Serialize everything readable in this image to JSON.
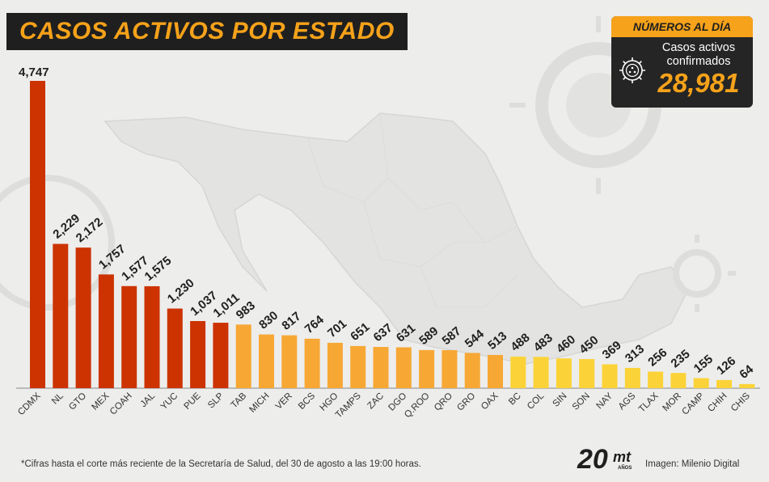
{
  "title": "CASOS ACTIVOS POR ESTADO",
  "stats": {
    "header": "NÚMEROS AL DÍA",
    "label": "Casos activos confirmados",
    "value": "28,981",
    "icon": "virus-icon"
  },
  "footer": {
    "note": "*Cifras hasta el corte más reciente de la Secretaría de Salud, del 30 de agosto a las 19:00 horas.",
    "credit": "Imagen: Milenio Digital",
    "logo_text": "20",
    "logo_sub": "mt",
    "logo_years": "AÑOS"
  },
  "colors": {
    "red": "#cc3300",
    "orange": "#f7a734",
    "yellow": "#fbd338",
    "accent": "#f6a21a",
    "dark": "#1f1f1f"
  },
  "chart_data": {
    "type": "bar",
    "categories": [
      "CDMX",
      "NL",
      "GTO",
      "MEX",
      "COAH",
      "JAL",
      "YUC",
      "PUE",
      "SLP",
      "TAB",
      "MICH",
      "VER",
      "BCS",
      "HGO",
      "TAMPS",
      "ZAC",
      "DGO",
      "Q.ROO",
      "QRO",
      "GRO",
      "OAX",
      "BC",
      "COL",
      "SIN",
      "SON",
      "NAY",
      "AGS",
      "TLAX",
      "MOR",
      "CAMP",
      "CHIH",
      "CHIS"
    ],
    "values": [
      4747,
      2229,
      2172,
      1757,
      1577,
      1575,
      1230,
      1037,
      1011,
      983,
      830,
      817,
      764,
      701,
      651,
      637,
      631,
      589,
      587,
      544,
      513,
      488,
      483,
      460,
      450,
      369,
      313,
      256,
      235,
      155,
      126,
      64
    ],
    "labels": [
      "4,747",
      "2,229",
      "2,172",
      "1,757",
      "1,577",
      "1,575",
      "1,230",
      "1,037",
      "1,011",
      "983",
      "830",
      "817",
      "764",
      "701",
      "651",
      "637",
      "631",
      "589",
      "587",
      "544",
      "513",
      "488",
      "483",
      "460",
      "450",
      "369",
      "313",
      "256",
      "235",
      "155",
      "126",
      "64"
    ],
    "bar_colors": [
      "red",
      "red",
      "red",
      "red",
      "red",
      "red",
      "red",
      "red",
      "red",
      "orange",
      "orange",
      "orange",
      "orange",
      "orange",
      "orange",
      "orange",
      "orange",
      "orange",
      "orange",
      "orange",
      "orange",
      "yellow",
      "yellow",
      "yellow",
      "yellow",
      "yellow",
      "yellow",
      "yellow",
      "yellow",
      "yellow",
      "yellow",
      "yellow"
    ],
    "title": "CASOS ACTIVOS POR ESTADO",
    "xlabel": "",
    "ylabel": "",
    "ylim": [
      0,
      4747
    ],
    "grid": false,
    "legend": "none"
  }
}
